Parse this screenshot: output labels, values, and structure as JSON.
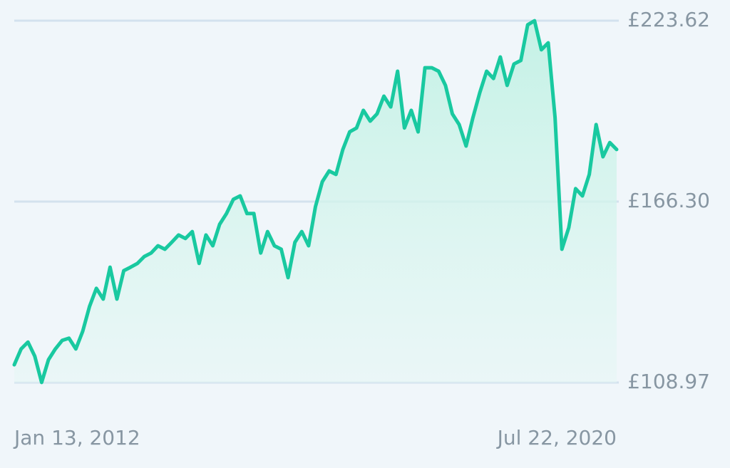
{
  "chart_data": {
    "type": "line",
    "color": "#19c9a0",
    "grid": true,
    "categories": [
      "Jan 13, 2012",
      null,
      null,
      null,
      null,
      null,
      null,
      null,
      null,
      null,
      null,
      null,
      null,
      null,
      null,
      null,
      null,
      null,
      null,
      null,
      null,
      null,
      null,
      null,
      null,
      null,
      null,
      null,
      null,
      null,
      null,
      null,
      null,
      null,
      null,
      null,
      null,
      null,
      null,
      null,
      null,
      null,
      null,
      null,
      null,
      null,
      null,
      null,
      null,
      null,
      null,
      null,
      null,
      null,
      null,
      null,
      null,
      null,
      null,
      null,
      null,
      null,
      null,
      null,
      null,
      null,
      null,
      null,
      null,
      null,
      null,
      null,
      null,
      null,
      null,
      null,
      null,
      null,
      null,
      null,
      null,
      null,
      null,
      null,
      null,
      null,
      null,
      null,
      "Jul 22, 2020"
    ],
    "values": [
      114.6,
      119.6,
      121.8,
      117.3,
      109.0,
      116.2,
      119.6,
      122.3,
      123.0,
      119.6,
      125.2,
      133.1,
      138.8,
      135.4,
      145.5,
      135.4,
      144.4,
      145.5,
      146.7,
      148.9,
      150.0,
      152.3,
      151.2,
      153.4,
      155.7,
      154.6,
      156.8,
      146.7,
      155.7,
      152.3,
      159.1,
      162.5,
      167.0,
      168.1,
      162.5,
      162.5,
      150.0,
      156.8,
      152.3,
      151.2,
      142.2,
      153.4,
      156.8,
      152.3,
      164.7,
      172.6,
      176.0,
      174.9,
      182.8,
      188.4,
      189.6,
      195.2,
      191.8,
      194.1,
      199.7,
      196.3,
      207.6,
      189.6,
      195.2,
      188.4,
      208.7,
      208.7,
      207.6,
      203.1,
      194.1,
      190.7,
      183.9,
      192.9,
      200.8,
      207.6,
      205.3,
      212.1,
      203.1,
      209.9,
      211.0,
      222.3,
      223.6,
      214.4,
      216.6,
      192.9,
      151.2,
      158.0,
      170.4,
      168.1,
      174.9,
      190.7,
      180.5,
      185.0,
      182.8
    ],
    "ylim": [
      108.97,
      223.62
    ],
    "yticks": [
      {
        "value": 108.97,
        "label": "£108.97"
      },
      {
        "value": 166.3,
        "label": "£166.30"
      },
      {
        "value": 223.62,
        "label": "£223.62"
      }
    ]
  }
}
